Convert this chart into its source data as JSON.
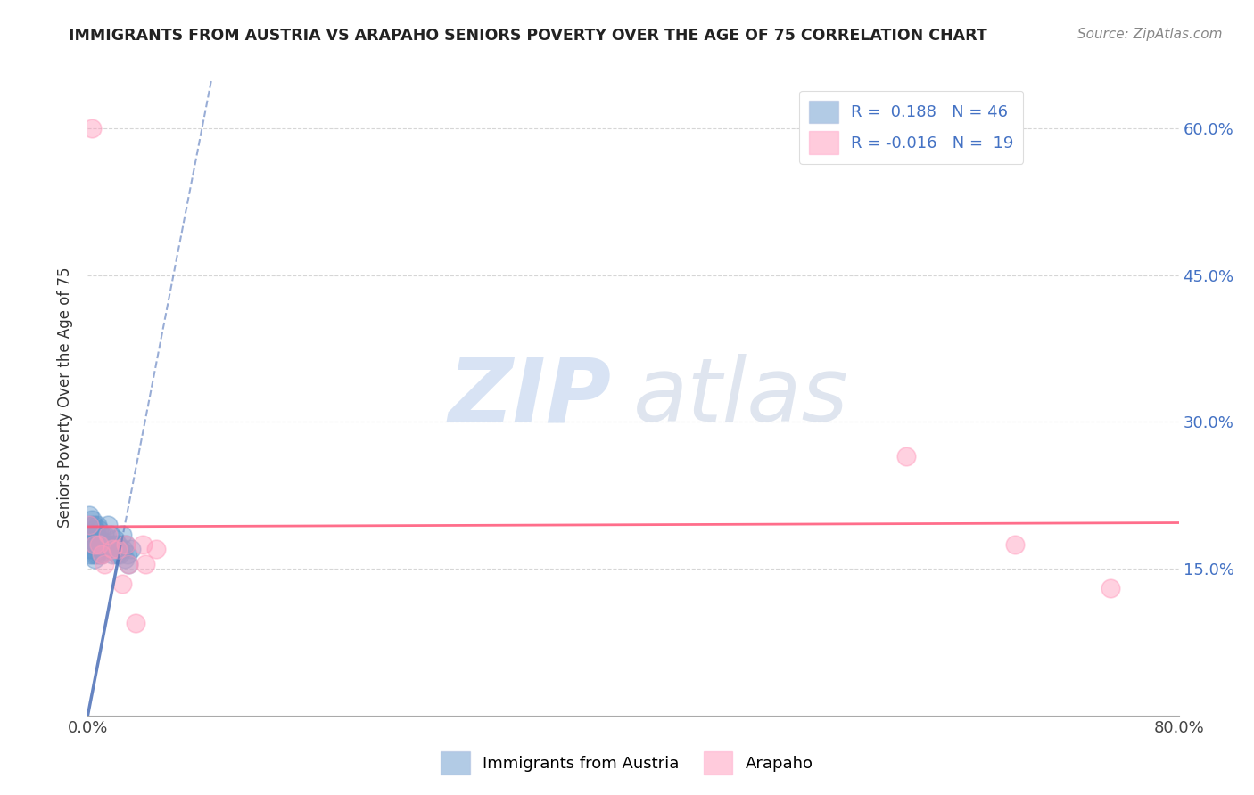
{
  "title": "IMMIGRANTS FROM AUSTRIA VS ARAPAHO SENIORS POVERTY OVER THE AGE OF 75 CORRELATION CHART",
  "source": "Source: ZipAtlas.com",
  "ylabel": "Seniors Poverty Over the Age of 75",
  "xlim": [
    0.0,
    0.8
  ],
  "ylim": [
    0.0,
    0.65
  ],
  "yticks": [
    0.15,
    0.3,
    0.45,
    0.6
  ],
  "ytick_labels": [
    "15.0%",
    "30.0%",
    "45.0%",
    "60.0%"
  ],
  "xticks": [
    0.0,
    0.1,
    0.2,
    0.3,
    0.4,
    0.5,
    0.6,
    0.7,
    0.8
  ],
  "xtick_labels": [
    "0.0%",
    "",
    "",
    "",
    "",
    "",
    "",
    "",
    "80.0%"
  ],
  "color_blue": "#6699CC",
  "color_pink": "#FF99BB",
  "color_trend_blue": "#5577BB",
  "color_trend_pink": "#FF5577",
  "blue_x": [
    0.001,
    0.001,
    0.001,
    0.002,
    0.002,
    0.002,
    0.003,
    0.003,
    0.003,
    0.004,
    0.004,
    0.004,
    0.005,
    0.005,
    0.005,
    0.006,
    0.006,
    0.007,
    0.007,
    0.008,
    0.008,
    0.009,
    0.009,
    0.01,
    0.01,
    0.011,
    0.012,
    0.013,
    0.014,
    0.015,
    0.016,
    0.017,
    0.018,
    0.019,
    0.02,
    0.021,
    0.022,
    0.023,
    0.024,
    0.025,
    0.026,
    0.027,
    0.028,
    0.029,
    0.03,
    0.032
  ],
  "blue_y": [
    0.205,
    0.185,
    0.17,
    0.195,
    0.175,
    0.165,
    0.2,
    0.185,
    0.17,
    0.195,
    0.175,
    0.165,
    0.19,
    0.175,
    0.16,
    0.185,
    0.165,
    0.195,
    0.175,
    0.19,
    0.175,
    0.18,
    0.165,
    0.185,
    0.165,
    0.175,
    0.185,
    0.175,
    0.17,
    0.195,
    0.175,
    0.185,
    0.165,
    0.175,
    0.18,
    0.165,
    0.175,
    0.165,
    0.17,
    0.185,
    0.17,
    0.16,
    0.175,
    0.165,
    0.155,
    0.17
  ],
  "pink_x": [
    0.001,
    0.003,
    0.005,
    0.008,
    0.01,
    0.012,
    0.015,
    0.018,
    0.022,
    0.025,
    0.028,
    0.03,
    0.035,
    0.04,
    0.042,
    0.05,
    0.6,
    0.68,
    0.75
  ],
  "pink_y": [
    0.195,
    0.6,
    0.175,
    0.175,
    0.165,
    0.155,
    0.185,
    0.17,
    0.17,
    0.135,
    0.175,
    0.155,
    0.095,
    0.175,
    0.155,
    0.17,
    0.265,
    0.175,
    0.13
  ],
  "blue_trend_x0": 0.0,
  "blue_trend_y0": 0.0,
  "blue_trend_x1": 0.032,
  "blue_trend_y1": 0.21,
  "blue_trend_ext_x1": 0.5,
  "blue_trend_ext_y1": 0.55,
  "pink_trend_y": 0.195,
  "watermark_zip_color": "#C8D8F0",
  "watermark_atlas_color": "#C0CCE0"
}
